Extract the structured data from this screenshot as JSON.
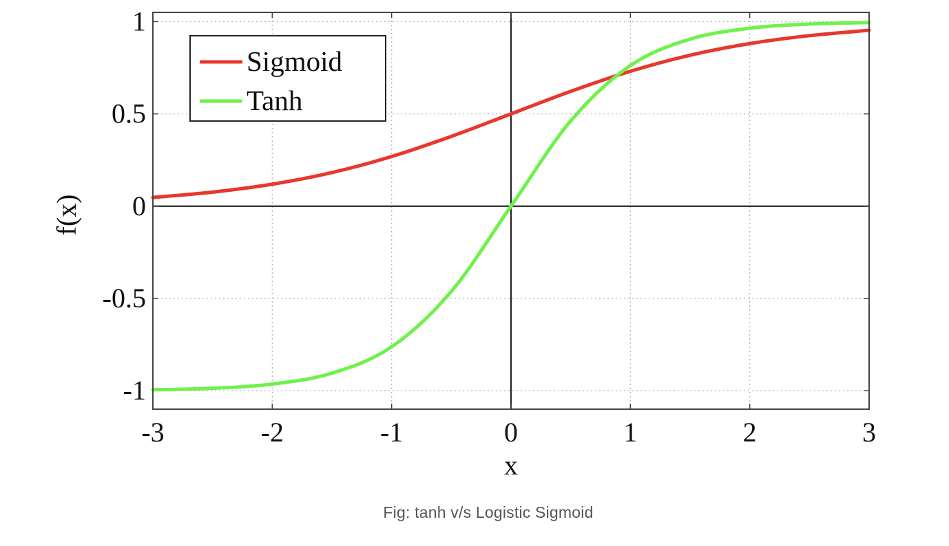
{
  "caption": "Fig: tanh v/s Logistic Sigmoid",
  "chart_data": {
    "type": "line",
    "title": "",
    "xlabel": "x",
    "ylabel": "f(x)",
    "xlim": [
      -3,
      3
    ],
    "ylim": [
      -1.1,
      1.05
    ],
    "x_ticks": [
      -3,
      -2,
      -1,
      0,
      1,
      2,
      3
    ],
    "x_tick_labels": [
      "-3",
      "-2",
      "-1",
      "0",
      "1",
      "2",
      "3"
    ],
    "y_ticks": [
      -1,
      -0.5,
      0,
      0.5,
      1
    ],
    "y_tick_labels": [
      "-1",
      "-0.5",
      "0",
      "0.5",
      "1"
    ],
    "grid": true,
    "legend_position": "top-left",
    "x": [
      -3,
      -2.5,
      -2,
      -1.5,
      -1,
      -0.5,
      0,
      0.5,
      1,
      1.5,
      2,
      2.5,
      3
    ],
    "series": [
      {
        "name": "Sigmoid",
        "color": "#e8372c",
        "values": [
          0.047,
          0.076,
          0.119,
          0.182,
          0.269,
          0.378,
          0.5,
          0.622,
          0.731,
          0.818,
          0.881,
          0.924,
          0.953
        ]
      },
      {
        "name": "Tanh",
        "color": "#6ef24a",
        "values": [
          -0.995,
          -0.987,
          -0.964,
          -0.905,
          -0.762,
          -0.462,
          0.0,
          0.462,
          0.762,
          0.905,
          0.964,
          0.987,
          0.995
        ]
      }
    ]
  }
}
